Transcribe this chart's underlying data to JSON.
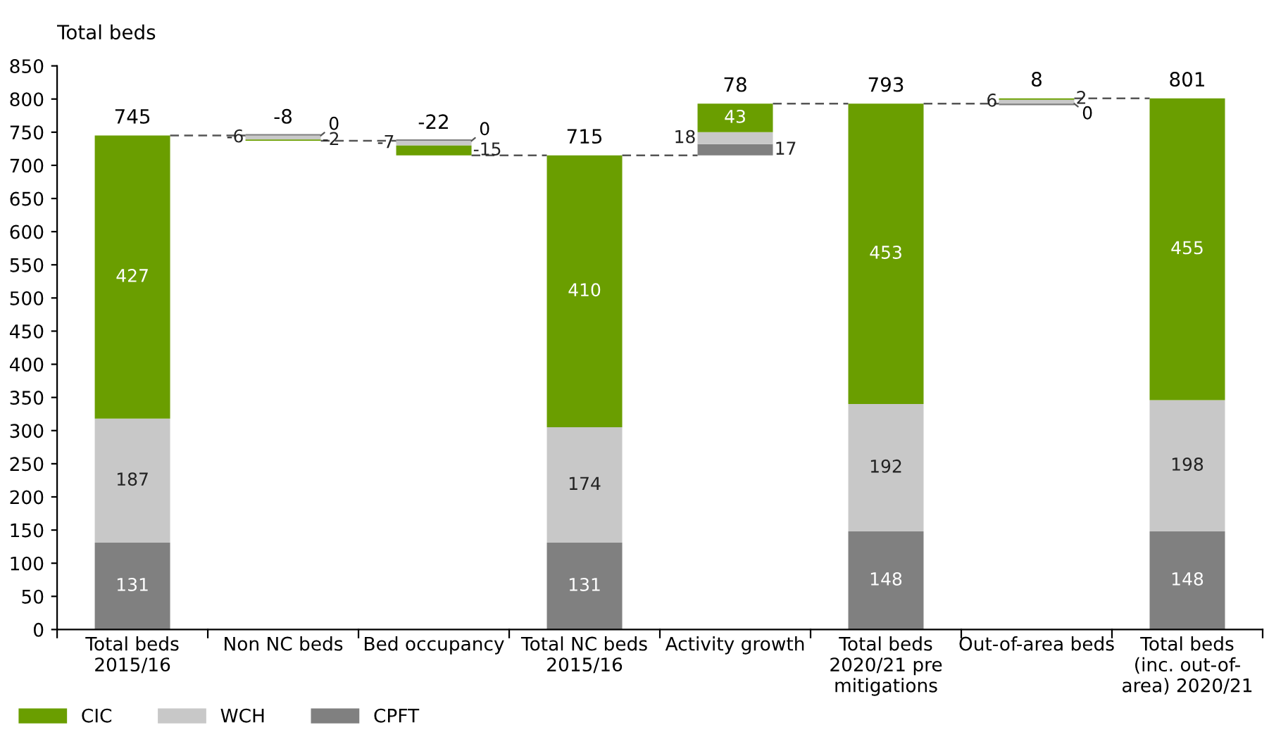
{
  "chart_data": {
    "type": "bar",
    "ylabel": "Total beds",
    "categories": [
      "Total beds\n2015/16",
      "Non NC beds",
      "Bed occupancy",
      "Total NC beds\n2015/16",
      "Activity growth",
      "Total beds\n2020/21 pre\nmitigations",
      "Out-of-area beds",
      "Total beds\n(inc. out-of-\narea) 2020/21"
    ],
    "series": [
      {
        "name": "CPFT",
        "color": "#808080",
        "values": [
          131,
          0,
          0,
          131,
          17,
          148,
          0,
          148
        ],
        "base": [
          0,
          745,
          737,
          0,
          715,
          0,
          793,
          0
        ]
      },
      {
        "name": "WCH",
        "color": "#c8c8c8",
        "values": [
          187,
          -6,
          -7,
          174,
          18,
          192,
          6,
          198
        ],
        "base": [
          131,
          745,
          737,
          131,
          732,
          148,
          793,
          148
        ]
      },
      {
        "name": "CIC",
        "color": "#6a9e00",
        "values": [
          427,
          -2,
          -15,
          410,
          43,
          453,
          2,
          455
        ],
        "base": [
          318,
          739,
          730,
          305,
          750,
          340,
          799,
          346
        ]
      }
    ],
    "totals": [
      "745",
      "-8",
      "-22",
      "715",
      "78",
      "793",
      "8",
      "801"
    ],
    "data_labels": true,
    "ylim": [
      0,
      850
    ],
    "yticks": [
      0,
      50,
      100,
      150,
      200,
      250,
      300,
      350,
      400,
      450,
      500,
      550,
      600,
      650,
      700,
      750,
      800,
      850
    ],
    "grid": false,
    "legend": "bottom left"
  }
}
